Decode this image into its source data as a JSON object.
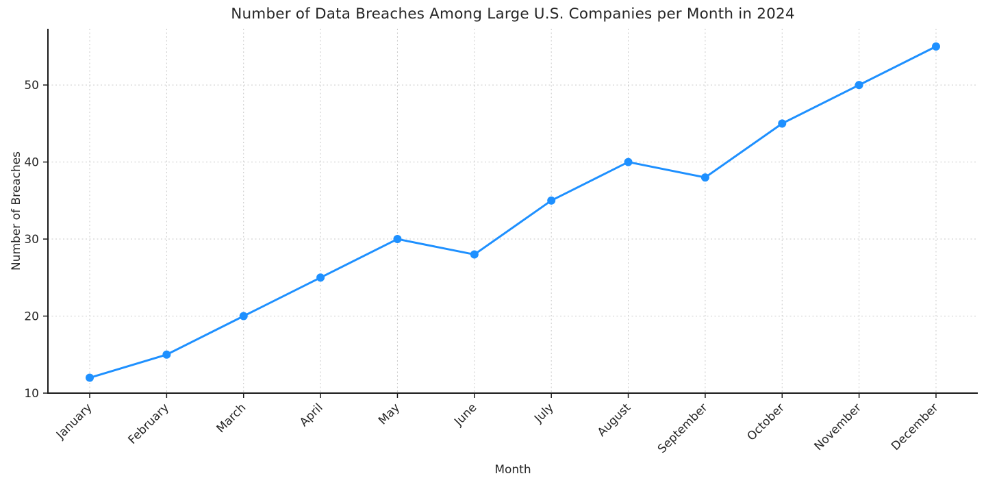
{
  "chart_data": {
    "type": "line",
    "title": "Number of Data Breaches Among Large U.S. Companies per Month in 2024",
    "xlabel": "Month",
    "ylabel": "Number of Breaches",
    "categories": [
      "January",
      "February",
      "March",
      "April",
      "May",
      "June",
      "July",
      "August",
      "September",
      "October",
      "November",
      "December"
    ],
    "values": [
      12,
      15,
      20,
      25,
      30,
      28,
      35,
      40,
      38,
      45,
      50,
      55
    ],
    "yticks": [
      10,
      20,
      30,
      40,
      50
    ],
    "ylim": [
      10,
      57.3
    ],
    "grid": true,
    "grid_style": "dashed",
    "legend_position": "none",
    "x_tick_rotation_deg": 45,
    "colors": {
      "line": "#1E90FF",
      "marker": "#1E90FF",
      "grid": "#c9c9c9",
      "spine": "#1a1a1a",
      "text": "#262626"
    }
  }
}
